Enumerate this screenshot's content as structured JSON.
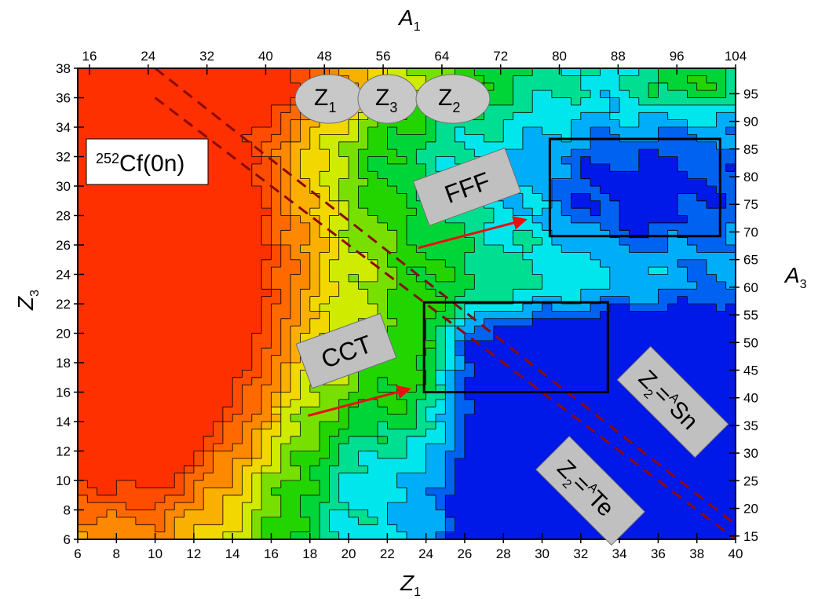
{
  "chart_data": {
    "type": "heatmap",
    "title": "",
    "annotation_label": {
      "sup": "252",
      "main": "Cf(0n)"
    },
    "axes": {
      "bottom": {
        "label": "Z",
        "label_sub": "1",
        "range": [
          6,
          40
        ],
        "ticks": [
          6,
          8,
          10,
          12,
          14,
          16,
          18,
          20,
          22,
          24,
          26,
          28,
          30,
          32,
          34,
          36,
          38,
          40
        ]
      },
      "left": {
        "label": "Z",
        "label_sub": "3",
        "range": [
          6,
          38
        ],
        "ticks": [
          6,
          8,
          10,
          12,
          14,
          16,
          18,
          20,
          22,
          24,
          26,
          28,
          30,
          32,
          34,
          36,
          38
        ]
      },
      "top": {
        "label": "A",
        "label_sub": "1",
        "range": [
          14.4,
          104
        ],
        "ticks": [
          16,
          24,
          32,
          40,
          48,
          56,
          64,
          72,
          80,
          88,
          96,
          104
        ]
      },
      "right": {
        "label": "A",
        "label_sub": "3",
        "range": [
          14.4,
          99.6
        ],
        "ticks": [
          15,
          20,
          25,
          30,
          35,
          40,
          45,
          50,
          55,
          60,
          65,
          70,
          75,
          80,
          85,
          90,
          95
        ]
      }
    },
    "colormap": [
      "#0018e8",
      "#00e8ff",
      "#00d000",
      "#f0f000",
      "#ff8000",
      "#ff3000"
    ],
    "regions": [
      {
        "name": "FFF",
        "z1": [
          30.4,
          39.2
        ],
        "z3": [
          26.6,
          33.2
        ]
      },
      {
        "name": "CCT",
        "z1": [
          23.9,
          33.4
        ],
        "z3": [
          16.0,
          22.1
        ]
      }
    ],
    "lines": [
      {
        "label": "Z2=ASn",
        "from": [
          10.0,
          38.0
        ],
        "to": [
          40.0,
          7.0
        ]
      },
      {
        "label": "Z2=ATe",
        "from": [
          10.0,
          36.0
        ],
        "to": [
          40.0,
          6.0
        ]
      }
    ],
    "arrows": [
      {
        "from": [
          23.6,
          25.8
        ],
        "to": [
          29.1,
          27.7
        ]
      },
      {
        "from": [
          17.9,
          14.4
        ],
        "to": [
          23.1,
          16.2
        ]
      }
    ],
    "labels": {
      "fff": "FFF",
      "cct": "CCT",
      "sn": {
        "z": "Z",
        "sub": "2",
        "eq": "=",
        "sup": "A",
        "el": "Sn"
      },
      "te": {
        "z": "Z",
        "sub": "2",
        "eq": "=",
        "sup": "A",
        "el": "Te"
      },
      "z1": {
        "z": "Z",
        "sub": "1"
      },
      "z3": {
        "z": "Z",
        "sub": "3"
      },
      "z2": {
        "z": "Z",
        "sub": "2"
      }
    }
  }
}
